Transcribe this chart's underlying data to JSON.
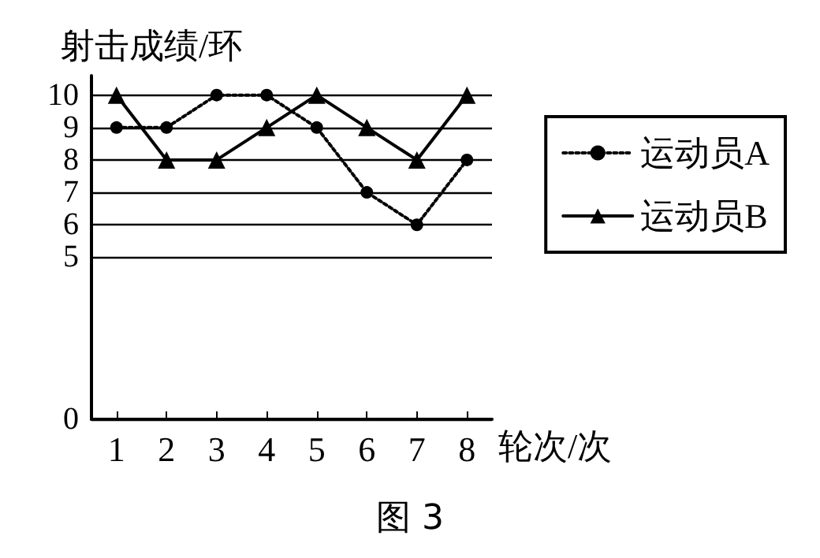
{
  "chart_data": {
    "type": "line",
    "ylabel": "射击成绩/环",
    "xlabel": "轮次/次",
    "annotations": [
      "图 3"
    ],
    "categories": [
      "1",
      "2",
      "3",
      "4",
      "5",
      "6",
      "7",
      "8"
    ],
    "series": [
      {
        "name": "运动员A",
        "color": "#000000",
        "values": [
          9,
          9,
          10,
          10,
          9,
          7,
          6,
          8
        ],
        "marker": "circle",
        "line_style": "dotted"
      },
      {
        "name": "运动员B",
        "color": "#000000",
        "values": [
          10,
          8,
          8,
          9,
          10,
          9,
          8,
          10
        ],
        "marker": "triangle",
        "line_style": "solid"
      }
    ],
    "ylim": [
      0,
      10.6
    ],
    "yticks": [
      0,
      5,
      6,
      7,
      8,
      9,
      10
    ],
    "grid": "y",
    "legend": "right"
  }
}
